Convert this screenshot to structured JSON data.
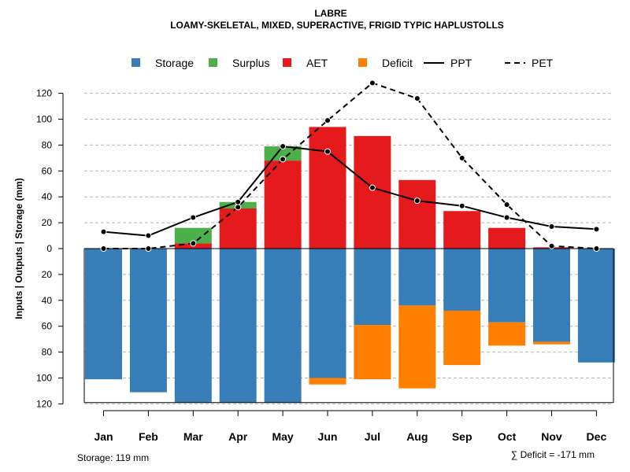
{
  "chart_data": {
    "type": "bar",
    "title": "LABRE",
    "subtitle": "LOAMY-SKELETAL, MIXED, SUPERACTIVE, FRIGID TYPIC HAPLUSTOLLS",
    "ylabel": "Inputs | Outputs | Storage    (mm)",
    "categories": [
      "Jan",
      "Feb",
      "Mar",
      "Apr",
      "May",
      "Jun",
      "Jul",
      "Aug",
      "Sep",
      "Oct",
      "Nov",
      "Dec"
    ],
    "ylim": [
      -120,
      130
    ],
    "yticks": [
      120,
      100,
      80,
      60,
      40,
      20,
      0,
      20,
      40,
      60,
      80,
      100,
      120
    ],
    "ytick_values": [
      120,
      100,
      80,
      60,
      40,
      20,
      0,
      -20,
      -40,
      -60,
      -80,
      -100,
      -120
    ],
    "legend": [
      {
        "label": "Storage",
        "kind": "box",
        "color": "#377EB8"
      },
      {
        "label": "Surplus",
        "kind": "box",
        "color": "#4DAF4A"
      },
      {
        "label": "AET",
        "kind": "box",
        "color": "#E41A1C"
      },
      {
        "label": "Deficit",
        "kind": "box",
        "color": "#FF7F00"
      },
      {
        "label": "PPT",
        "kind": "solid",
        "color": "#000000"
      },
      {
        "label": "PET",
        "kind": "dashed",
        "color": "#000000"
      }
    ],
    "series": [
      {
        "name": "AET",
        "color": "#E41A1C",
        "values": [
          0,
          0,
          4,
          31,
          68,
          94,
          87,
          53,
          29,
          16,
          1,
          0
        ]
      },
      {
        "name": "Surplus",
        "color": "#4DAF4A",
        "values": [
          0,
          0,
          12,
          5,
          11,
          0,
          0,
          0,
          0,
          0,
          0,
          0
        ]
      },
      {
        "name": "Storage",
        "color": "#377EB8",
        "values": [
          101,
          111,
          119,
          119,
          119,
          100,
          59,
          44,
          48,
          57,
          72,
          88
        ]
      },
      {
        "name": "Deficit",
        "color": "#FF7F00",
        "values": [
          0,
          0,
          0,
          0,
          0,
          5,
          42,
          64,
          42,
          18,
          2,
          0
        ]
      },
      {
        "name": "PPT",
        "color": "#000000",
        "values": [
          13,
          10,
          24,
          36,
          79,
          75,
          47,
          37,
          33,
          24,
          17,
          15
        ]
      },
      {
        "name": "PET",
        "color": "#000000",
        "values": [
          0,
          0,
          4,
          32,
          69,
          99,
          128,
          116,
          70,
          34,
          2,
          0
        ]
      }
    ],
    "storage_capacity": 119,
    "notes": {
      "storage": "Storage: 119 mm",
      "deficit": "∑ Deficit = -171 mm"
    },
    "grid": true
  }
}
